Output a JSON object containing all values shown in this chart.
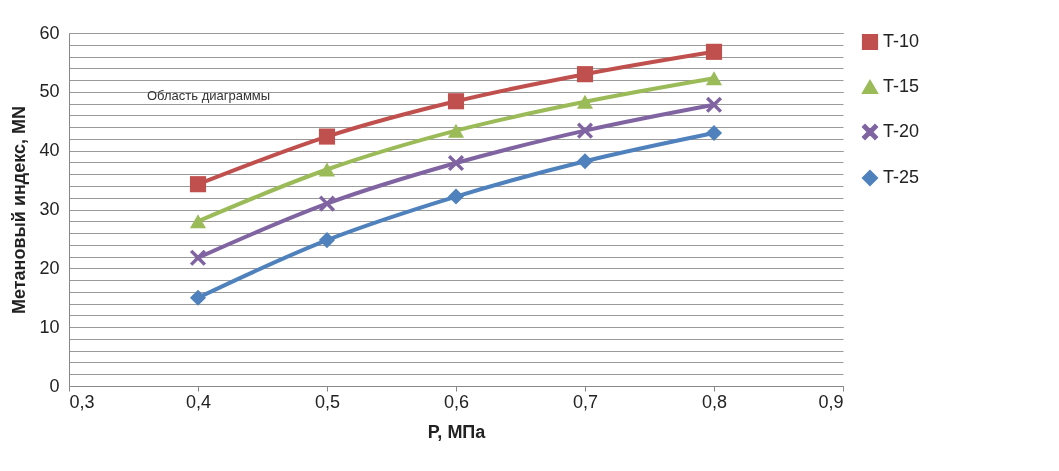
{
  "chart_data": {
    "type": "line",
    "ylabel": "Метановый  индекс, MN",
    "xlabel": "P, МПа",
    "xlim": [
      0.3,
      0.9
    ],
    "xticks": [
      {
        "value": 0.3,
        "label": "0,3"
      },
      {
        "value": 0.4,
        "label": "0,4"
      },
      {
        "value": 0.5,
        "label": "0,5"
      },
      {
        "value": 0.6,
        "label": "0,6"
      },
      {
        "value": 0.7,
        "label": "0,7"
      },
      {
        "value": 0.8,
        "label": "0,8"
      },
      {
        "value": 0.9,
        "label": "0,9"
      }
    ],
    "ylim": [
      0,
      60
    ],
    "yticks": [
      0,
      10,
      20,
      30,
      40,
      50,
      60
    ],
    "grid": "y",
    "legend": "right",
    "x": [
      0.4,
      0.5,
      0.6,
      0.7,
      0.8
    ],
    "annotations": [
      "Область диаграммы"
    ],
    "series": [
      {
        "name": "T-10",
        "color": "#c0504d",
        "marker": "square",
        "values": [
          34.3,
          42.4,
          48.4,
          53,
          56.8
        ]
      },
      {
        "name": "T-15",
        "color": "#9bbb59",
        "marker": "triangle",
        "values": [
          28,
          36.8,
          43.4,
          48.3,
          52.3
        ]
      },
      {
        "name": "T-20",
        "color": "#8064a2",
        "marker": "cross",
        "values": [
          21.8,
          31,
          37.9,
          43.4,
          47.8
        ]
      },
      {
        "name": "T-25",
        "color": "#4f81bd",
        "marker": "diamond",
        "values": [
          15,
          24.8,
          32.2,
          38.2,
          43
        ]
      }
    ]
  }
}
